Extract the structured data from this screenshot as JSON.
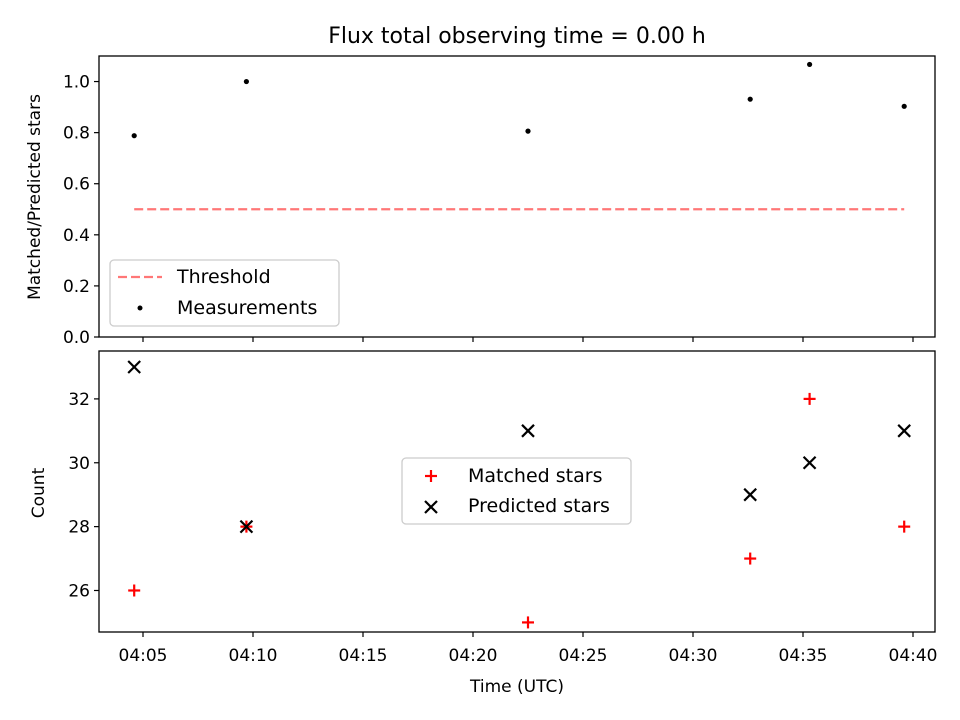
{
  "chart_data": [
    {
      "type": "scatter",
      "title": "Flux total observing time = 0.00 h",
      "xlabel": "",
      "ylabel": "Matched/Predicted stars",
      "xlim": [
        "04:03",
        "04:41"
      ],
      "ylim": [
        0,
        1.1
      ],
      "yticks": [
        "0.0",
        "0.2",
        "0.4",
        "0.6",
        "0.8",
        "1.0"
      ],
      "grid": false,
      "legend_position": "lower-left",
      "threshold": {
        "name": "Threshold",
        "y": 0.5,
        "x_start": "04:04:36",
        "x_end": "04:39:36",
        "color": "#ff7777",
        "style": "dashed"
      },
      "series": [
        {
          "name": "Measurements",
          "color": "#000000",
          "marker": "dot",
          "x": [
            "04:04:36",
            "04:09:42",
            "04:22:30",
            "04:32:36",
            "04:35:18",
            "04:39:36"
          ],
          "y": [
            0.788,
            1.0,
            0.806,
            0.931,
            1.067,
            0.903
          ]
        }
      ]
    },
    {
      "type": "scatter",
      "title": "",
      "xlabel": "Time (UTC)",
      "ylabel": "Count",
      "xlim": [
        "04:03",
        "04:41"
      ],
      "ylim": [
        24.7,
        33.5
      ],
      "xticks": [
        "04:05",
        "04:10",
        "04:15",
        "04:20",
        "04:25",
        "04:30",
        "04:35",
        "04:40"
      ],
      "yticks": [
        "26",
        "28",
        "30",
        "32"
      ],
      "grid": false,
      "legend_position": "center",
      "series": [
        {
          "name": "Matched stars",
          "color": "#ff0000",
          "marker": "plus",
          "x": [
            "04:04:36",
            "04:09:42",
            "04:22:30",
            "04:32:36",
            "04:35:18",
            "04:39:36"
          ],
          "y": [
            26,
            28,
            25,
            27,
            32,
            28
          ]
        },
        {
          "name": "Predicted stars",
          "color": "#000000",
          "marker": "x",
          "x": [
            "04:04:36",
            "04:09:42",
            "04:22:30",
            "04:32:36",
            "04:35:18",
            "04:39:36"
          ],
          "y": [
            33,
            28,
            31,
            29,
            30,
            31
          ]
        }
      ]
    }
  ]
}
